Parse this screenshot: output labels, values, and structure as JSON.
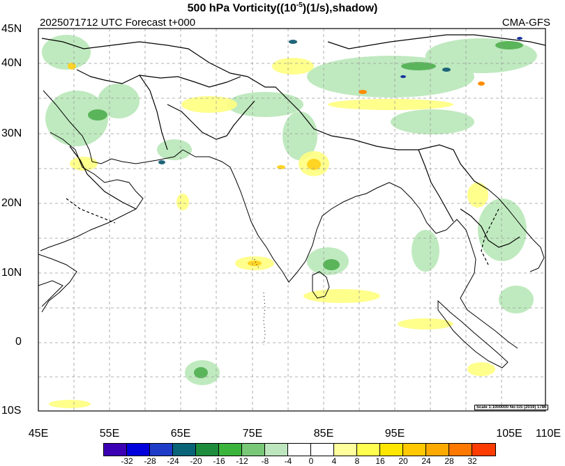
{
  "title": {
    "main_pre": "500 hPa Vorticity((10",
    "exponent": "-5",
    "main_post": ")(1/s),shadow)"
  },
  "subtitle": {
    "left": "2025071712 UTC Forecast t+000",
    "right": "CMA-GFS"
  },
  "map": {
    "lat_labels": [
      "45N",
      "40N",
      "30N",
      "20N",
      "10N",
      "0",
      "10S"
    ],
    "lon_labels": [
      "45E",
      "55E",
      "65E",
      "75E",
      "85E",
      "95E",
      "105E",
      "110E"
    ],
    "scale_note": "Scale 1:1000000 No:GS (2019) 1786",
    "gridlines": "dashed",
    "field_colors": {
      "yellow": "#ffff80",
      "gold": "#ffd21e",
      "orange": "#ff8c00",
      "red": "#e6281e",
      "light_green": "#b4e6b4",
      "green": "#5ab45a",
      "dark_green": "#197832",
      "teal": "#1e6478",
      "blue": "#1432a0"
    }
  },
  "colorbar": {
    "colors": [
      "#3c00b4",
      "#0000dc",
      "#1e3cc8",
      "#0a6478",
      "#1e8c3c",
      "#3cb43c",
      "#78c878",
      "#bee6be",
      "#ffffff",
      "#ffffff",
      "#ffff9b",
      "#ffff50",
      "#ffe600",
      "#ffc800",
      "#ffaa00",
      "#ff7800",
      "#ff3c00"
    ],
    "labels": [
      "-32",
      "-28",
      "-24",
      "-20",
      "-16",
      "-12",
      "-8",
      "-4",
      "0",
      "4",
      "8",
      "16",
      "20",
      "24",
      "28",
      "32"
    ]
  }
}
